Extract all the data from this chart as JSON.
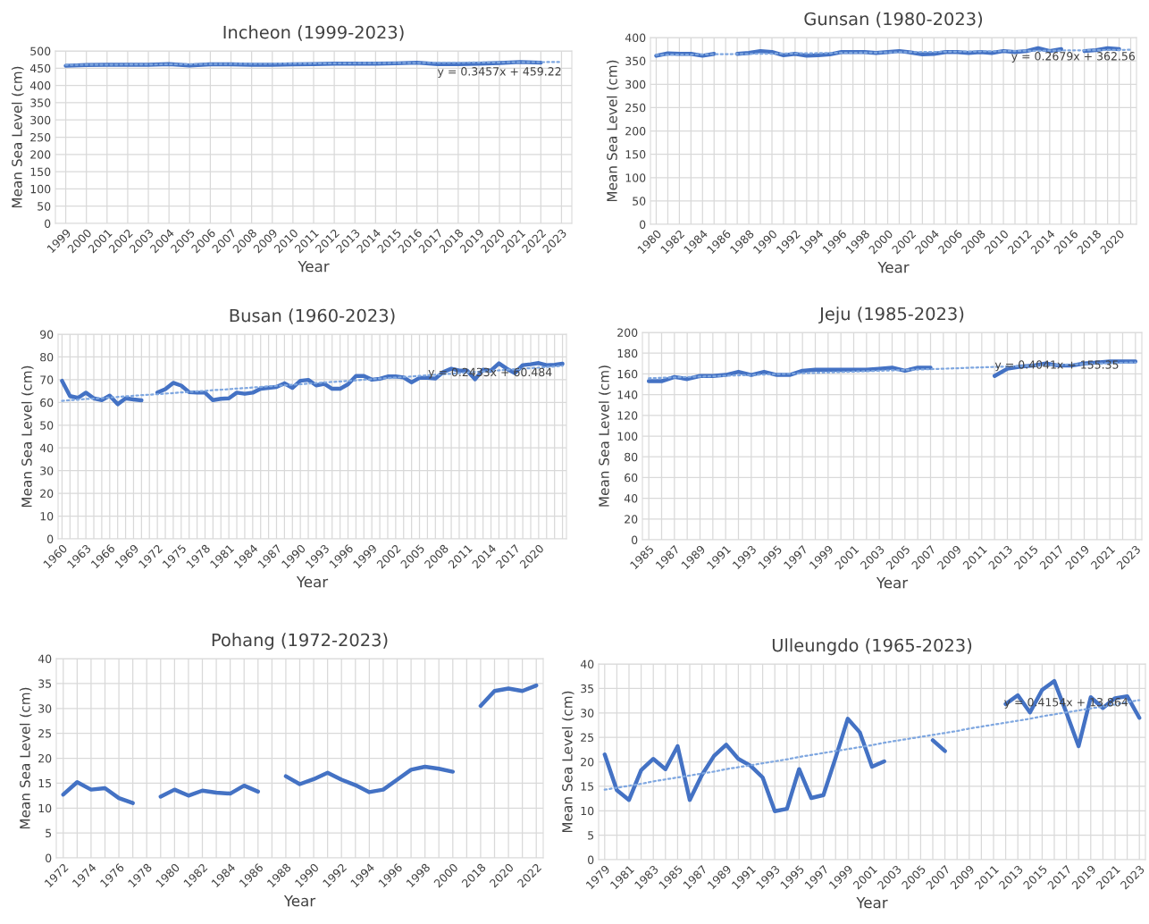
{
  "chart_data": [
    {
      "type": "line",
      "title": "Incheon (1999-2023)",
      "xlabel": "Year",
      "ylabel": "Mean Sea Level (cm)",
      "grid": true,
      "ylim": [
        0,
        500
      ],
      "yticks": [
        0,
        50,
        100,
        150,
        200,
        250,
        300,
        350,
        400,
        450,
        500
      ],
      "categories": [
        "1999",
        "2000",
        "2001",
        "2002",
        "2003",
        "2004",
        "2005",
        "2006",
        "2007",
        "2008",
        "2009",
        "2010",
        "2011",
        "2012",
        "2013",
        "2014",
        "2015",
        "2016",
        "2017",
        "2018",
        "2019",
        "2020",
        "2021",
        "2022",
        "2023"
      ],
      "series": [
        {
          "color": "#4472c4",
          "values": [
            457,
            459,
            460,
            460,
            460,
            462,
            458,
            461,
            461,
            460,
            460,
            461,
            462,
            463,
            463,
            463,
            464,
            466,
            462,
            462,
            463,
            465,
            468,
            466,
            null
          ]
        },
        {
          "type": "line",
          "line_style": "dotted",
          "color": "#7fa7e0",
          "values": [
            459.6,
            459.9,
            460.3,
            460.6,
            461.0,
            461.3,
            461.7,
            462.0,
            462.4,
            462.7,
            463.1,
            463.4,
            463.7,
            464.1,
            464.4,
            464.8,
            465.1,
            465.5,
            465.8,
            466.2,
            466.5,
            466.9,
            467.2,
            467.6,
            467.9
          ]
        }
      ],
      "annotations": [
        "y = 0.3457x + 459.22"
      ]
    },
    {
      "type": "line",
      "title": "Gunsan (1980-2023)",
      "xlabel": "Year",
      "ylabel": "Mean Sea Level (cm)",
      "grid": true,
      "ylim": [
        0,
        400
      ],
      "yticks": [
        0,
        50,
        100,
        150,
        200,
        250,
        300,
        350,
        400
      ],
      "categories": [
        "1980",
        null,
        "1982",
        null,
        "1984",
        null,
        "1986",
        null,
        "1988",
        null,
        "1990",
        null,
        "1992",
        null,
        "1994",
        null,
        "1996",
        null,
        "1998",
        null,
        "2000",
        null,
        "2002",
        null,
        "2004",
        null,
        "2006",
        null,
        "2008",
        null,
        "2010",
        null,
        "2012",
        null,
        "2014",
        null,
        "2016",
        null,
        "2018",
        null,
        "2020",
        null
      ],
      "series": [
        {
          "color": "#4472c4",
          "values": [
            361,
            366,
            365,
            365,
            361,
            365,
            null,
            365,
            367,
            371,
            369,
            362,
            365,
            361,
            362,
            364,
            369,
            369,
            369,
            367,
            369,
            371,
            368,
            364,
            365,
            369,
            369,
            367,
            369,
            367,
            371,
            369,
            371,
            377,
            371,
            375,
            null,
            371,
            373,
            377,
            375,
            null
          ]
        },
        {
          "type": "line",
          "line_style": "dotted",
          "color": "#7fa7e0",
          "values": [
            362.8,
            363.1,
            363.4,
            363.6,
            363.9,
            364.2,
            364.4,
            364.7,
            365.0,
            365.2,
            365.5,
            365.8,
            366.0,
            366.3,
            366.6,
            366.9,
            367.1,
            367.4,
            367.6,
            367.9,
            368.2,
            368.5,
            368.7,
            369.0,
            369.3,
            369.5,
            369.8,
            370.1,
            370.3,
            370.6,
            370.9,
            371.1,
            371.4,
            371.7,
            371.9,
            372.2,
            372.5,
            372.7,
            373.0,
            373.3,
            373.5,
            373.8
          ]
        }
      ],
      "annotations": [
        "y = 0.2679x + 362.56"
      ]
    },
    {
      "type": "line",
      "title": "Busan (1960-2023)",
      "xlabel": "Year",
      "ylabel": "Mean Sea Level (cm)",
      "grid": true,
      "ylim": [
        0,
        90
      ],
      "yticks": [
        0,
        10,
        20,
        30,
        40,
        50,
        60,
        70,
        80,
        90
      ],
      "categories": [
        "1960",
        null,
        null,
        "1963",
        null,
        null,
        "1966",
        null,
        null,
        "1969",
        null,
        null,
        "1972",
        null,
        null,
        "1975",
        null,
        null,
        "1978",
        null,
        null,
        "1981",
        null,
        null,
        "1984",
        null,
        null,
        "1987",
        null,
        null,
        "1990",
        null,
        null,
        "1993",
        null,
        null,
        "1996",
        null,
        null,
        "1999",
        null,
        null,
        "2002",
        null,
        null,
        "2005",
        null,
        null,
        "2008",
        null,
        null,
        "2011",
        null,
        null,
        "2014",
        null,
        null,
        "2017",
        null,
        null,
        "2020",
        null,
        null,
        null
      ],
      "series": [
        {
          "color": "#4472c4",
          "values": [
            69.5,
            62.8,
            62.0,
            64.3,
            61.8,
            61.0,
            63.0,
            59.2,
            61.8,
            61.3,
            60.9,
            null,
            64.3,
            65.8,
            68.6,
            67.4,
            64.5,
            64.3,
            64.3,
            61.0,
            61.6,
            61.8,
            64.3,
            63.8,
            64.3,
            66.0,
            66.4,
            66.8,
            68.4,
            66.4,
            69.5,
            69.9,
            67.5,
            68.2,
            66.0,
            66.0,
            68.0,
            71.6,
            71.6,
            70.0,
            70.4,
            71.4,
            71.4,
            71.0,
            68.8,
            70.8,
            70.8,
            70.5,
            73.4,
            74.8,
            74.0,
            74.0,
            70.2,
            74.4,
            74.0,
            77.2,
            74.8,
            72.9,
            76.4,
            76.8,
            77.3,
            76.4,
            76.6,
            77.0
          ]
        },
        {
          "type": "line",
          "line_style": "dotted",
          "color": "#7fa7e0",
          "values": [
            60.7,
            61.0,
            61.2,
            61.5,
            61.7,
            61.9,
            62.2,
            62.4,
            62.7,
            62.9,
            63.2,
            63.4,
            63.6,
            63.9,
            64.1,
            64.4,
            64.6,
            64.9,
            65.1,
            65.4,
            65.6,
            65.8,
            66.1,
            66.3,
            66.6,
            66.8,
            67.1,
            67.3,
            67.5,
            67.8,
            68.0,
            68.3,
            68.5,
            68.8,
            69.0,
            69.2,
            69.5,
            69.7,
            70.0,
            70.2,
            70.5,
            70.7,
            70.9,
            71.2,
            71.4,
            71.7,
            71.9,
            72.2,
            72.4,
            72.6,
            72.9,
            73.1,
            73.4,
            73.6,
            73.9,
            74.1,
            74.4,
            74.6,
            74.8,
            75.1,
            75.3,
            75.6,
            75.8,
            76.1
          ]
        }
      ],
      "annotations": [
        "y = 0.2433x + 60.484"
      ]
    },
    {
      "type": "line",
      "title": "Jeju (1985-2023)",
      "xlabel": "Year",
      "ylabel": "Mean Sea Level (cm)",
      "grid": true,
      "ylim": [
        0,
        200
      ],
      "yticks": [
        0,
        20,
        40,
        60,
        80,
        100,
        120,
        140,
        160,
        180,
        200
      ],
      "categories": [
        "1985",
        null,
        "1987",
        null,
        "1989",
        null,
        "1991",
        null,
        "1993",
        null,
        "1995",
        null,
        "1997",
        null,
        "1999",
        null,
        "2001",
        null,
        "2003",
        null,
        "2005",
        null,
        "2007",
        null,
        "2009",
        null,
        "2011",
        null,
        "2013",
        null,
        "2015",
        null,
        "2017",
        null,
        "2019",
        null,
        "2021",
        null,
        "2023"
      ],
      "series": [
        {
          "color": "#4472c4",
          "values": [
            153,
            153,
            157,
            155,
            158,
            158,
            159,
            162,
            159,
            162,
            159,
            159,
            163,
            164,
            164,
            164,
            164,
            164,
            165,
            166,
            163,
            166,
            166,
            null,
            null,
            null,
            null,
            158,
            165,
            167,
            168,
            170,
            168,
            168,
            170,
            171,
            172,
            172,
            172
          ]
        },
        {
          "type": "line",
          "line_style": "dotted",
          "color": "#7fa7e0",
          "values": [
            155.8,
            156.2,
            156.6,
            157.0,
            157.4,
            157.8,
            158.2,
            158.6,
            159.0,
            159.4,
            159.8,
            160.2,
            160.6,
            161.0,
            161.4,
            161.8,
            162.2,
            162.6,
            163.0,
            163.4,
            163.8,
            164.2,
            164.6,
            165.0,
            165.4,
            165.9,
            166.3,
            166.7,
            167.1,
            167.5,
            167.9,
            168.3,
            168.7,
            169.1,
            169.5,
            169.9,
            170.3,
            170.7,
            171.1
          ]
        }
      ],
      "annotations": [
        "y = 0.4041x + 155.35"
      ]
    },
    {
      "type": "line",
      "title": "Pohang (1972-2023)",
      "xlabel": "Year",
      "ylabel": "Mean Sea Level (cm)",
      "grid": true,
      "ylim": [
        0,
        40
      ],
      "yticks": [
        0,
        5,
        10,
        15,
        20,
        25,
        30,
        35,
        40
      ],
      "categories": [
        "1972",
        null,
        "1974",
        null,
        "1976",
        null,
        "1978",
        null,
        "1980",
        null,
        "1982",
        null,
        "1984",
        null,
        "1986",
        null,
        "1988",
        null,
        "1990",
        null,
        "1992",
        null,
        "1994",
        null,
        "1996",
        null,
        "1998",
        null,
        "2000",
        null,
        "2018",
        null,
        "2020",
        null,
        "2022"
      ],
      "series": [
        {
          "color": "#4472c4",
          "values": [
            12.7,
            15.2,
            13.7,
            14.0,
            12.0,
            11.0,
            null,
            12.3,
            13.7,
            12.5,
            13.5,
            13.1,
            12.9,
            14.5,
            13.3,
            null,
            16.4,
            14.8,
            15.8,
            17.1,
            15.7,
            14.6,
            13.2,
            13.7,
            15.7,
            17.7,
            18.3,
            17.9,
            17.3,
            null,
            30.5,
            33.5,
            34.0,
            33.5,
            34.6
          ]
        }
      ]
    },
    {
      "type": "line",
      "title": "Ulleungdo (1965-2023)",
      "xlabel": "Year",
      "ylabel": "Mean Sea Level (cm)",
      "grid": true,
      "ylim": [
        0,
        40
      ],
      "yticks": [
        0,
        5,
        10,
        15,
        20,
        25,
        30,
        35,
        40
      ],
      "categories": [
        "1979",
        null,
        "1981",
        null,
        "1983",
        null,
        "1985",
        null,
        "1987",
        null,
        "1989",
        null,
        "1991",
        null,
        "1993",
        null,
        "1995",
        null,
        "1997",
        null,
        "1999",
        null,
        "2001",
        null,
        "2003",
        null,
        "2005",
        null,
        "2007",
        null,
        "2009",
        null,
        "2011",
        null,
        "2013",
        null,
        "2015",
        null,
        "2017",
        null,
        "2019",
        null,
        "2021",
        null,
        "2023"
      ],
      "series": [
        {
          "color": "#4472c4",
          "values": [
            21.5,
            14.2,
            12.2,
            18.3,
            20.6,
            18.5,
            23.2,
            12.2,
            17.3,
            21.2,
            23.5,
            20.6,
            19.2,
            16.8,
            9.9,
            10.4,
            18.5,
            12.6,
            13.2,
            20.8,
            28.8,
            26.0,
            19.0,
            20.1,
            null,
            null,
            null,
            24.4,
            22.2,
            null,
            null,
            null,
            null,
            31.8,
            33.6,
            30.1,
            34.7,
            36.5,
            30.0,
            23.2,
            33.2,
            31.0,
            33.0,
            33.4,
            29.0
          ]
        },
        {
          "type": "line",
          "line_style": "dotted",
          "color": "#7fa7e0",
          "values": [
            14.3,
            14.7,
            15.1,
            15.5,
            16.0,
            16.4,
            16.8,
            17.2,
            17.6,
            18.0,
            18.5,
            18.9,
            19.3,
            19.7,
            20.1,
            20.5,
            21.0,
            21.4,
            21.8,
            22.2,
            22.6,
            23.0,
            23.4,
            23.9,
            24.3,
            24.7,
            25.1,
            25.5,
            25.9,
            26.3,
            26.8,
            27.2,
            27.6,
            28.0,
            28.4,
            28.8,
            29.3,
            29.7,
            30.1,
            30.5,
            30.9,
            31.3,
            31.7,
            32.2,
            32.6
          ]
        }
      ],
      "annotations": [
        "y = 0.4154x + 13.864"
      ]
    }
  ]
}
